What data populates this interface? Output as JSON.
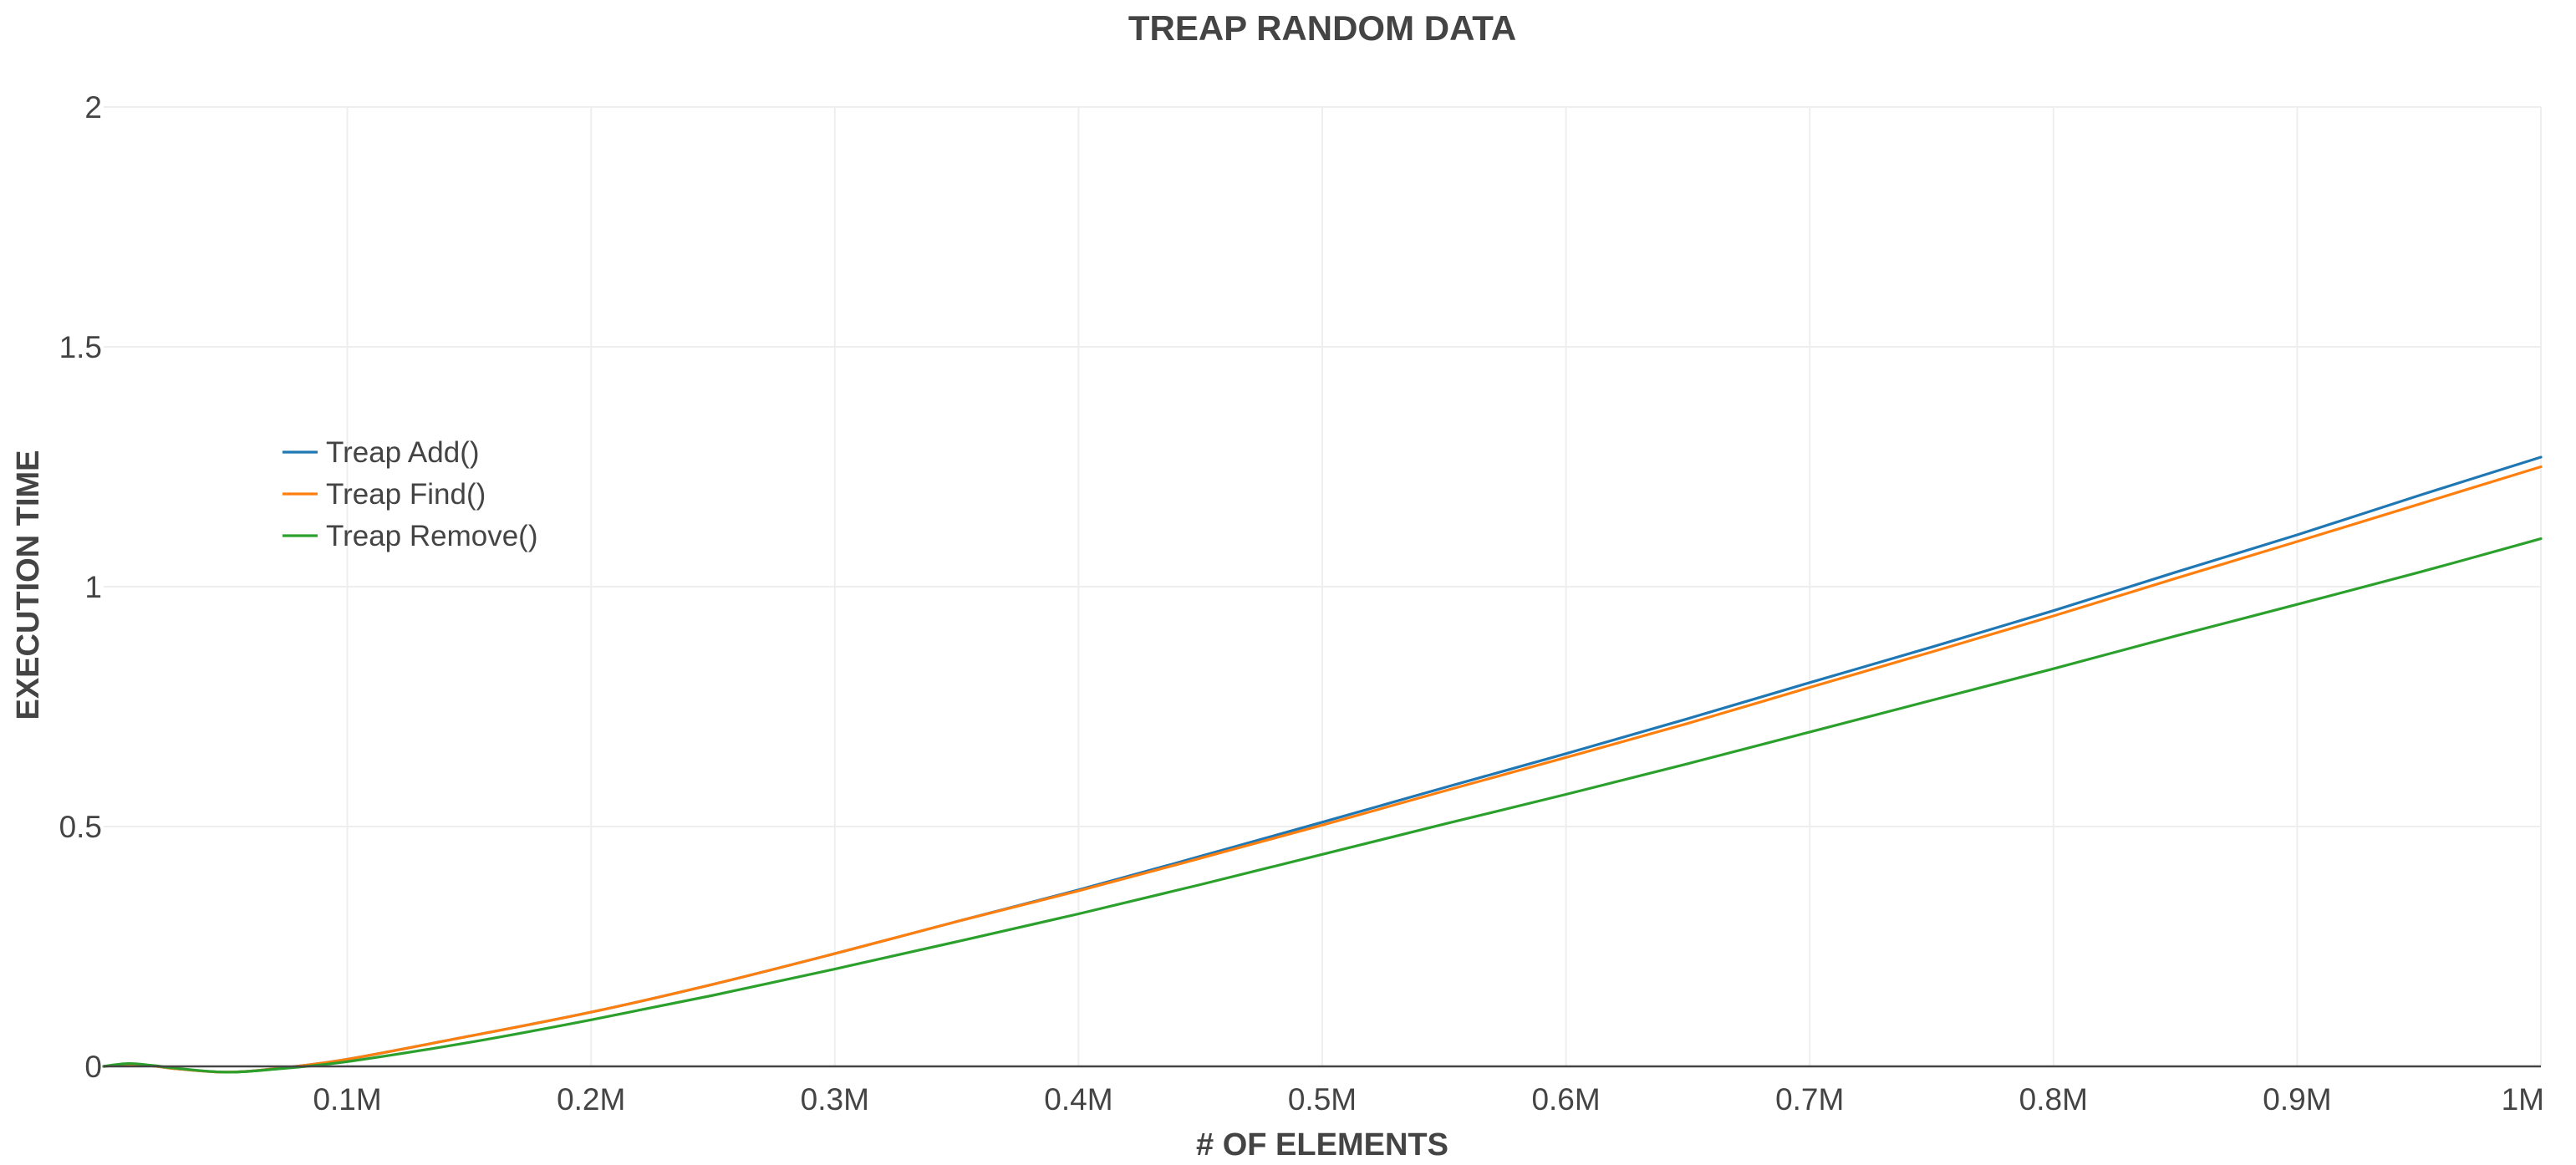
{
  "chart_data": {
    "type": "line",
    "title": "TREAP RANDOM DATA",
    "xlabel": "# OF ELEMENTS",
    "ylabel": "EXECUTION TIME",
    "xlim": [
      0,
      1000000
    ],
    "ylim": [
      0,
      2
    ],
    "grid": true,
    "legend_position": "top-left",
    "x_ticks": [
      {
        "value": 100000,
        "label": "0.1M"
      },
      {
        "value": 200000,
        "label": "0.2M"
      },
      {
        "value": 300000,
        "label": "0.3M"
      },
      {
        "value": 400000,
        "label": "0.4M"
      },
      {
        "value": 500000,
        "label": "0.5M"
      },
      {
        "value": 600000,
        "label": "0.6M"
      },
      {
        "value": 700000,
        "label": "0.7M"
      },
      {
        "value": 800000,
        "label": "0.8M"
      },
      {
        "value": 900000,
        "label": "0.9M"
      },
      {
        "value": 1000000,
        "label": "1M"
      }
    ],
    "y_ticks": [
      {
        "value": 0,
        "label": "0"
      },
      {
        "value": 0.5,
        "label": "0.5"
      },
      {
        "value": 1,
        "label": "1"
      },
      {
        "value": 1.5,
        "label": "1.5"
      },
      {
        "value": 2,
        "label": "2"
      }
    ],
    "x": [
      0,
      10000,
      20000,
      30000,
      50000,
      70000,
      100000,
      150000,
      200000,
      250000,
      300000,
      350000,
      400000,
      450000,
      500000,
      550000,
      600000,
      650000,
      700000,
      750000,
      800000,
      850000,
      900000,
      950000,
      1000000
    ],
    "series": [
      {
        "name": "Treap Add()",
        "color": "#1f77b4",
        "values": [
          0,
          0.004,
          0.001,
          -0.005,
          -0.012,
          -0.005,
          0.015,
          0.063,
          0.113,
          0.171,
          0.235,
          0.302,
          0.368,
          0.438,
          0.509,
          0.581,
          0.652,
          0.725,
          0.8,
          0.874,
          0.95,
          1.03,
          1.108,
          1.19,
          1.27
        ]
      },
      {
        "name": "Treap Find()",
        "color": "#ff7f0e",
        "values": [
          0,
          0.004,
          0.001,
          -0.005,
          -0.012,
          -0.005,
          0.015,
          0.063,
          0.113,
          0.171,
          0.235,
          0.302,
          0.366,
          0.434,
          0.503,
          0.574,
          0.644,
          0.715,
          0.79,
          0.864,
          0.939,
          1.017,
          1.094,
          1.172,
          1.25
        ]
      },
      {
        "name": "Treap Remove()",
        "color": "#2ca02c",
        "values": [
          0,
          0.006,
          0.002,
          -0.004,
          -0.012,
          -0.006,
          0.01,
          0.05,
          0.097,
          0.148,
          0.203,
          0.26,
          0.318,
          0.379,
          0.442,
          0.505,
          0.567,
          0.631,
          0.697,
          0.763,
          0.829,
          0.897,
          0.963,
          1.03,
          1.1
        ]
      }
    ]
  }
}
